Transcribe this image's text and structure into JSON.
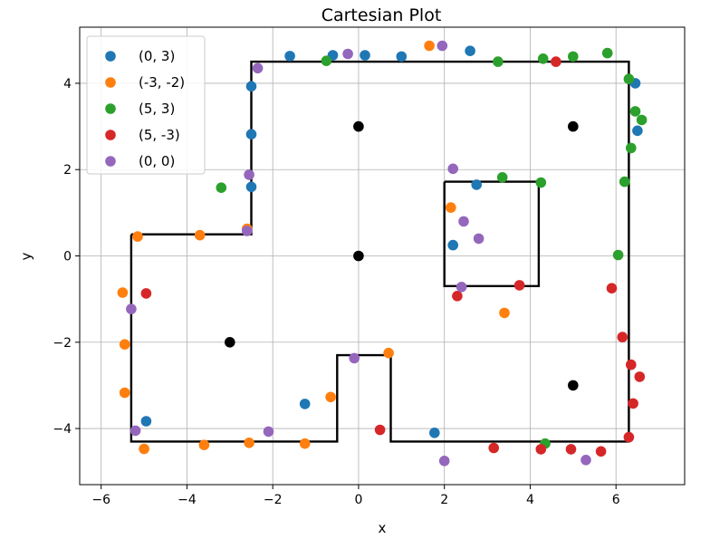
{
  "chart_data": {
    "type": "scatter",
    "title": "Cartesian Plot",
    "xlabel": "x",
    "ylabel": "y",
    "xlim": [
      -6.5,
      7.6
    ],
    "ylim": [
      -5.3,
      5.3
    ],
    "xticks": [
      -6,
      -4,
      -2,
      0,
      2,
      4,
      6
    ],
    "yticks": [
      -4,
      -2,
      0,
      2,
      4
    ],
    "xtick_labels": [
      "−6",
      "−4",
      "−2",
      "0",
      "2",
      "4",
      "6"
    ],
    "ytick_labels": [
      "−4",
      "−2",
      "0",
      "2",
      "4"
    ],
    "grid": true,
    "legend_position": "upper-left",
    "series": [
      {
        "name": "(0, 3)",
        "color": "#1f77b4",
        "points": [
          [
            -1.6,
            4.63
          ],
          [
            -0.6,
            4.65
          ],
          [
            0.15,
            4.65
          ],
          [
            1.0,
            4.62
          ],
          [
            2.6,
            4.75
          ],
          [
            -2.5,
            3.93
          ],
          [
            -2.5,
            2.82
          ],
          [
            -2.5,
            1.6
          ],
          [
            2.75,
            1.65
          ],
          [
            2.2,
            0.25
          ],
          [
            6.45,
            4.0
          ],
          [
            6.5,
            2.9
          ],
          [
            -1.25,
            -3.43
          ],
          [
            -4.95,
            -3.83
          ],
          [
            1.77,
            -4.1
          ]
        ]
      },
      {
        "name": "(-3, -2)",
        "color": "#ff7f0e",
        "points": [
          [
            1.65,
            4.87
          ],
          [
            -5.15,
            0.45
          ],
          [
            -3.7,
            0.48
          ],
          [
            -2.6,
            0.63
          ],
          [
            -5.5,
            -0.85
          ],
          [
            -5.45,
            -2.05
          ],
          [
            -5.45,
            -3.17
          ],
          [
            -5.0,
            -4.47
          ],
          [
            -3.6,
            -4.38
          ],
          [
            -2.55,
            -4.33
          ],
          [
            -1.25,
            -4.35
          ],
          [
            -0.65,
            -3.27
          ],
          [
            0.7,
            -2.25
          ],
          [
            2.15,
            1.12
          ],
          [
            3.4,
            -1.32
          ]
        ]
      },
      {
        "name": "(5, 3)",
        "color": "#2ca02c",
        "points": [
          [
            -0.75,
            4.52
          ],
          [
            3.25,
            4.5
          ],
          [
            4.3,
            4.57
          ],
          [
            5.0,
            4.62
          ],
          [
            5.8,
            4.7
          ],
          [
            6.3,
            4.1
          ],
          [
            6.45,
            3.35
          ],
          [
            6.6,
            3.15
          ],
          [
            6.35,
            2.5
          ],
          [
            6.2,
            1.72
          ],
          [
            6.05,
            0.02
          ],
          [
            3.35,
            1.82
          ],
          [
            4.25,
            1.7
          ],
          [
            -3.2,
            1.58
          ],
          [
            4.35,
            -4.35
          ]
        ]
      },
      {
        "name": "(5, -3)",
        "color": "#d62728",
        "points": [
          [
            4.6,
            4.5
          ],
          [
            5.9,
            -0.75
          ],
          [
            6.15,
            -1.88
          ],
          [
            6.35,
            -2.52
          ],
          [
            6.4,
            -3.42
          ],
          [
            6.55,
            -2.8
          ],
          [
            6.3,
            -4.2
          ],
          [
            5.65,
            -4.53
          ],
          [
            4.95,
            -4.48
          ],
          [
            4.25,
            -4.48
          ],
          [
            3.15,
            -4.45
          ],
          [
            0.5,
            -4.03
          ],
          [
            3.75,
            -0.68
          ],
          [
            2.3,
            -0.93
          ],
          [
            -4.95,
            -0.87
          ]
        ]
      },
      {
        "name": "(0, 0)",
        "color": "#9467bd",
        "points": [
          [
            -2.35,
            4.35
          ],
          [
            -0.25,
            4.68
          ],
          [
            1.95,
            4.87
          ],
          [
            2.2,
            2.02
          ],
          [
            2.45,
            0.8
          ],
          [
            2.8,
            0.4
          ],
          [
            2.4,
            -0.72
          ],
          [
            -2.55,
            1.88
          ],
          [
            -2.6,
            0.58
          ],
          [
            -5.3,
            -1.23
          ],
          [
            -5.2,
            -4.05
          ],
          [
            -2.1,
            -4.07
          ],
          [
            -0.1,
            -2.37
          ],
          [
            2.0,
            -4.75
          ],
          [
            5.3,
            -4.73
          ]
        ]
      }
    ],
    "black_points": [
      [
        0,
        3
      ],
      [
        0,
        0
      ],
      [
        -3,
        -2
      ],
      [
        5,
        3
      ],
      [
        5,
        -3
      ]
    ],
    "outline_paths": [
      [
        [
          -5.3,
          0.5
        ],
        [
          -2.5,
          0.5
        ],
        [
          -2.5,
          4.5
        ],
        [
          6.3,
          4.5
        ],
        [
          6.3,
          -4.3
        ],
        [
          0.75,
          -4.3
        ],
        [
          0.75,
          -2.3
        ],
        [
          -0.5,
          -2.3
        ],
        [
          -0.5,
          -4.3
        ],
        [
          -5.3,
          -4.3
        ],
        [
          -5.3,
          0.5
        ]
      ],
      [
        [
          2.0,
          1.72
        ],
        [
          4.2,
          1.72
        ],
        [
          4.2,
          -0.7
        ],
        [
          2.0,
          -0.7
        ],
        [
          2.0,
          1.72
        ]
      ]
    ]
  }
}
